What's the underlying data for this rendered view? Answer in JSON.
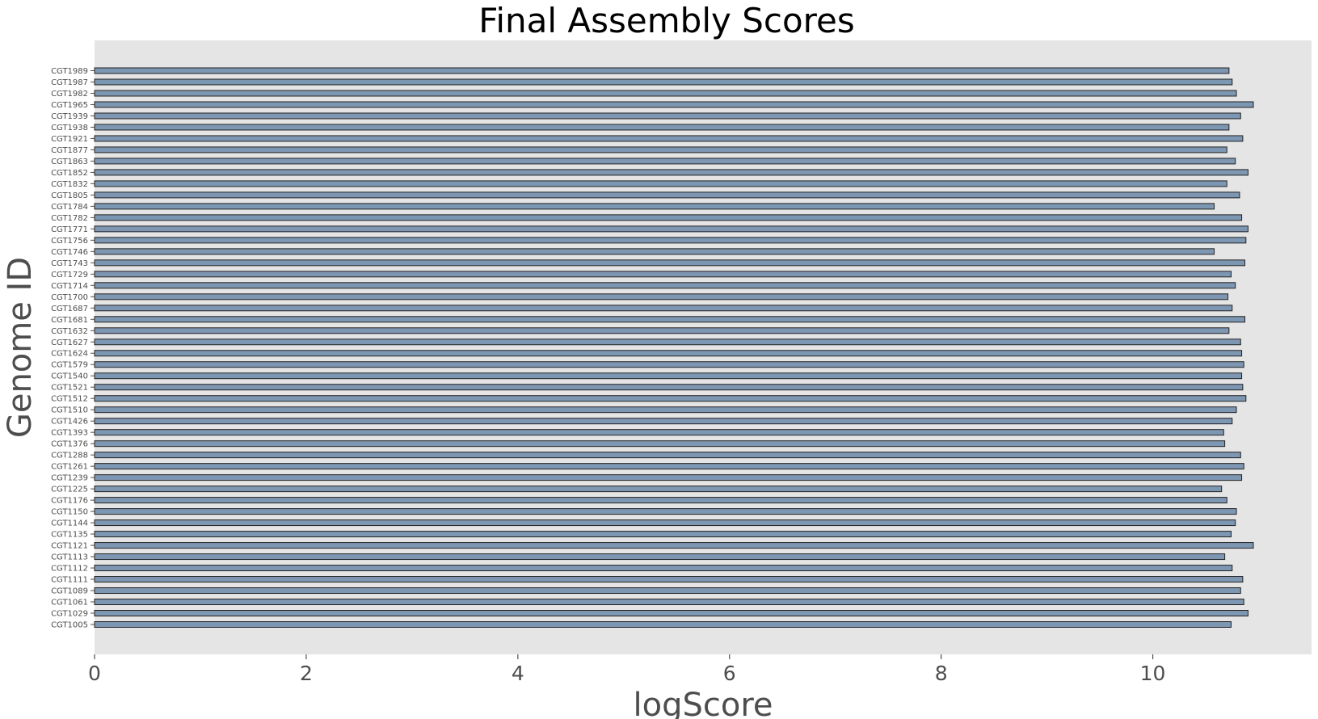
{
  "chart_data": {
    "type": "bar",
    "orientation": "horizontal",
    "title": "Final Assembly Scores",
    "xlabel": "logScore",
    "ylabel": "Genome ID",
    "xlim": [
      0,
      11.5
    ],
    "xticks": [
      "0",
      "2",
      "4",
      "6",
      "8",
      "10"
    ],
    "grid": false,
    "legend": "none",
    "colors": {
      "bar_fill": "#7d96b2",
      "bar_edge": "#222222",
      "plot_bg": "#e5e5e5",
      "axis_text": "#4d4d4d"
    },
    "categories": [
      "CGT1005",
      "CGT1029",
      "CGT1061",
      "CGT1089",
      "CGT1111",
      "CGT1112",
      "CGT1113",
      "CGT1121",
      "CGT1135",
      "CGT1144",
      "CGT1150",
      "CGT1176",
      "CGT1225",
      "CGT1239",
      "CGT1261",
      "CGT1288",
      "CGT1376",
      "CGT1393",
      "CGT1426",
      "CGT1510",
      "CGT1512",
      "CGT1521",
      "CGT1540",
      "CGT1579",
      "CGT1624",
      "CGT1627",
      "CGT1632",
      "CGT1681",
      "CGT1687",
      "CGT1700",
      "CGT1714",
      "CGT1729",
      "CGT1743",
      "CGT1746",
      "CGT1756",
      "CGT1771",
      "CGT1782",
      "CGT1784",
      "CGT1805",
      "CGT1832",
      "CGT1852",
      "CGT1863",
      "CGT1877",
      "CGT1921",
      "CGT1938",
      "CGT1939",
      "CGT1965",
      "CGT1982",
      "CGT1987",
      "CGT1989"
    ],
    "values": [
      10.74,
      10.9,
      10.86,
      10.83,
      10.85,
      10.75,
      10.68,
      10.95,
      10.74,
      10.78,
      10.79,
      10.7,
      10.65,
      10.84,
      10.86,
      10.83,
      10.68,
      10.67,
      10.75,
      10.79,
      10.88,
      10.85,
      10.84,
      10.86,
      10.84,
      10.83,
      10.72,
      10.87,
      10.75,
      10.71,
      10.78,
      10.74,
      10.87,
      10.58,
      10.88,
      10.9,
      10.84,
      10.58,
      10.82,
      10.7,
      10.9,
      10.78,
      10.7,
      10.85,
      10.72,
      10.83,
      10.95,
      10.79,
      10.75,
      10.72
    ]
  }
}
